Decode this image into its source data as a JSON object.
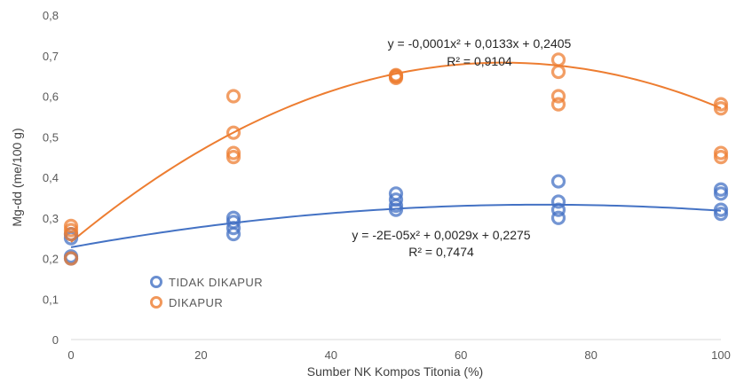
{
  "chart_data": {
    "type": "scatter",
    "xlabel": "Sumber NK Kompos Titonia (%)",
    "ylabel": "Mg-dd (me/100 g)",
    "xlim": [
      0,
      100
    ],
    "ylim": [
      0,
      0.8
    ],
    "x_ticks": [
      "0",
      "20",
      "40",
      "60",
      "80",
      "100"
    ],
    "y_ticks": [
      "0",
      "0,1",
      "0,2",
      "0,3",
      "0,4",
      "0,5",
      "0,6",
      "0,7",
      "0,8"
    ],
    "grid": false,
    "legend_position": "left-center",
    "series": [
      {
        "name": "TIDAK DIKAPUR",
        "color": "#4472C4",
        "points": [
          {
            "x": 0,
            "y": 0.2
          },
          {
            "x": 0,
            "y": 0.205
          },
          {
            "x": 0,
            "y": 0.25
          },
          {
            "x": 0,
            "y": 0.26
          },
          {
            "x": 25,
            "y": 0.26
          },
          {
            "x": 25,
            "y": 0.275
          },
          {
            "x": 25,
            "y": 0.29
          },
          {
            "x": 25,
            "y": 0.3
          },
          {
            "x": 50,
            "y": 0.32
          },
          {
            "x": 50,
            "y": 0.33
          },
          {
            "x": 50,
            "y": 0.345
          },
          {
            "x": 50,
            "y": 0.36
          },
          {
            "x": 75,
            "y": 0.3
          },
          {
            "x": 75,
            "y": 0.32
          },
          {
            "x": 75,
            "y": 0.34
          },
          {
            "x": 75,
            "y": 0.39
          },
          {
            "x": 100,
            "y": 0.31
          },
          {
            "x": 100,
            "y": 0.32
          },
          {
            "x": 100,
            "y": 0.36
          },
          {
            "x": 100,
            "y": 0.37
          }
        ],
        "trendline": {
          "a": -2e-05,
          "b": 0.0029,
          "c": 0.2275
        },
        "equation": "y = -2E-05x² + 0,0029x + 0,2275",
        "r2": "R² = 0,7474"
      },
      {
        "name": "DIKAPUR",
        "color": "#ED7D31",
        "points": [
          {
            "x": 0,
            "y": 0.2
          },
          {
            "x": 0,
            "y": 0.26
          },
          {
            "x": 0,
            "y": 0.27
          },
          {
            "x": 0,
            "y": 0.28
          },
          {
            "x": 25,
            "y": 0.45
          },
          {
            "x": 25,
            "y": 0.46
          },
          {
            "x": 25,
            "y": 0.51
          },
          {
            "x": 25,
            "y": 0.6
          },
          {
            "x": 50,
            "y": 0.645
          },
          {
            "x": 50,
            "y": 0.648
          },
          {
            "x": 50,
            "y": 0.65
          },
          {
            "x": 50,
            "y": 0.652
          },
          {
            "x": 75,
            "y": 0.58
          },
          {
            "x": 75,
            "y": 0.6
          },
          {
            "x": 75,
            "y": 0.66
          },
          {
            "x": 75,
            "y": 0.69
          },
          {
            "x": 100,
            "y": 0.45
          },
          {
            "x": 100,
            "y": 0.46
          },
          {
            "x": 100,
            "y": 0.57
          },
          {
            "x": 100,
            "y": 0.58
          }
        ],
        "trendline": {
          "a": -0.0001,
          "b": 0.0133,
          "c": 0.2405
        },
        "equation": "y = -0,0001x² + 0,0133x + 0,2405",
        "r2": "R² = 0,9104"
      }
    ]
  }
}
